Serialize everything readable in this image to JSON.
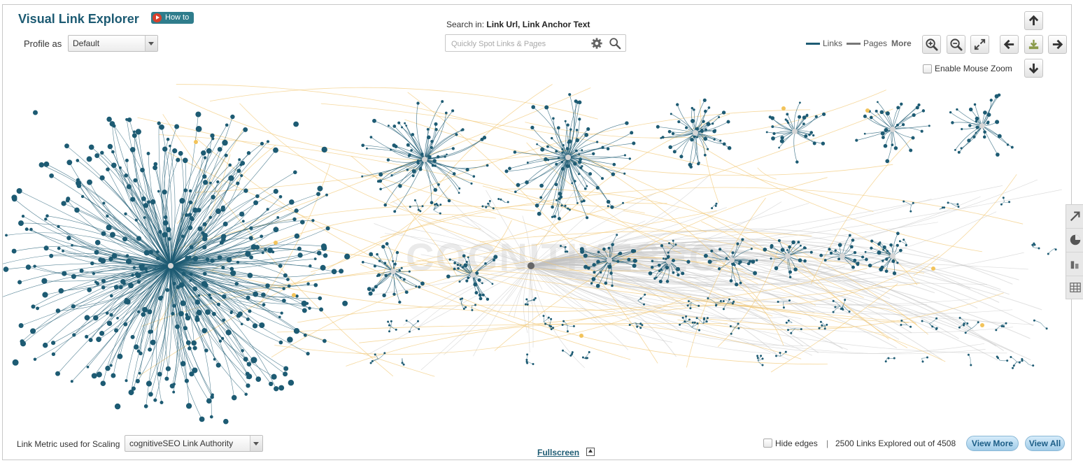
{
  "header": {
    "title": "Visual Link Explorer",
    "howto_label": "How to",
    "profile_label": "Profile as",
    "profile_value": "Default"
  },
  "search": {
    "prefix": "Search in:",
    "fields": "Link Url, Link Anchor Text",
    "placeholder": "Quickly Spot Links & Pages",
    "icons": [
      "gear-icon",
      "search-icon"
    ]
  },
  "legend": {
    "links_label": "Links",
    "pages_label": "Pages",
    "more_label": "More",
    "links_color": "#1d5b73",
    "pages_color": "#777777"
  },
  "toolbar": {
    "zoom_in": "zoom-in-icon",
    "zoom_out": "zoom-out-icon",
    "fit": "expand-icon",
    "left": "arrow-left-icon",
    "download": "download-icon",
    "right": "arrow-right-icon",
    "up": "arrow-up-icon",
    "down": "arrow-down-icon",
    "mouse_zoom_label": "Enable Mouse Zoom"
  },
  "graph": {
    "watermark": "COGNITIVESEO",
    "link_color": "#1d5b73",
    "edge_color": "#f2c874",
    "page_edge_color": "#cfcfcf"
  },
  "side_tools": [
    "share-arrow-icon",
    "pie-chart-icon",
    "bar-chart-icon",
    "grid-icon"
  ],
  "footer": {
    "metric_label": "Link Metric used for Scaling",
    "metric_value": "cognitiveSEO Link Authority",
    "fullscreen_label": "Fullscreen",
    "hide_edges_label": "Hide edges",
    "separator": "|",
    "explored_text": "2500 Links Explored out of 4508",
    "view_more_label": "View More",
    "view_all_label": "View All"
  }
}
